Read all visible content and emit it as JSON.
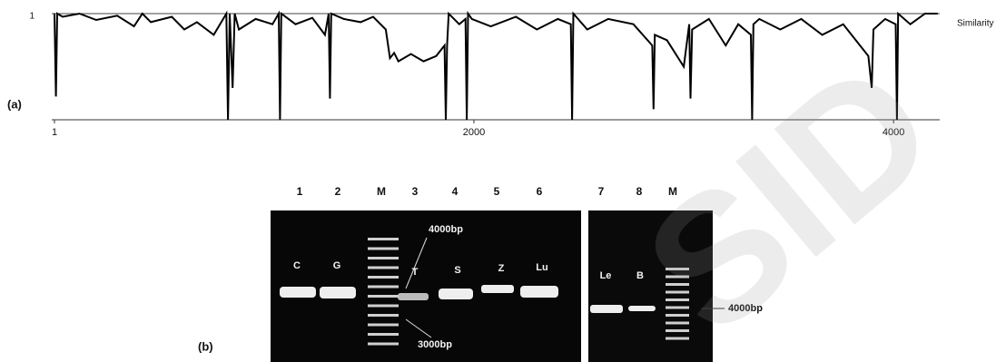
{
  "chart_data": {
    "type": "line",
    "panel_label": "(a)",
    "y_label": "Similarity",
    "x": [
      1,
      8,
      14,
      40,
      120,
      200,
      300,
      380,
      420,
      460,
      560,
      620,
      680,
      760,
      820,
      828,
      836,
      850,
      860,
      880,
      960,
      1040,
      1070,
      1076,
      1082,
      1150,
      1230,
      1290,
      1308,
      1314,
      1320,
      1380,
      1460,
      1520,
      1580,
      1600,
      1620,
      1640,
      1700,
      1760,
      1820,
      1860,
      1866,
      1872,
      1880,
      1930,
      1960,
      1966,
      1972,
      1990,
      2080,
      2200,
      2300,
      2400,
      2462,
      2468,
      2474,
      2540,
      2640,
      2760,
      2850,
      2856,
      2862,
      2920,
      3000,
      3026,
      3032,
      3040,
      3120,
      3200,
      3260,
      3320,
      3326,
      3332,
      3360,
      3460,
      3560,
      3660,
      3760,
      3880,
      3896,
      3904,
      3960,
      4010,
      4016,
      4022,
      4080,
      4150,
      4210
    ],
    "values": [
      1,
      0.22,
      1,
      0.97,
      1,
      0.94,
      0.98,
      0.88,
      1,
      0.92,
      0.97,
      0.85,
      0.92,
      0.8,
      1,
      0,
      1,
      0.3,
      1,
      0.85,
      0.95,
      0.9,
      1,
      0,
      1,
      0.9,
      0.96,
      0.8,
      1,
      0.2,
      1,
      0.95,
      0.92,
      0.97,
      0.85,
      0.58,
      0.63,
      0.55,
      0.62,
      0.55,
      0.6,
      0.7,
      0,
      0.7,
      1,
      0.9,
      0.95,
      0,
      1,
      0.95,
      0.88,
      0.97,
      0.85,
      0.95,
      0.9,
      0,
      1,
      0.85,
      0.95,
      0.9,
      0.7,
      0.1,
      0.8,
      0.75,
      0.5,
      0.9,
      0.2,
      0.85,
      0.95,
      0.7,
      0.9,
      0.8,
      0,
      0.9,
      0.95,
      0.85,
      0.95,
      0.8,
      0.9,
      0.6,
      0.3,
      0.85,
      0.95,
      0.9,
      0,
      1,
      0.9,
      1,
      1
    ],
    "color": "#000000",
    "xlim": [
      1,
      4220
    ],
    "ylim": [
      0,
      1
    ],
    "xticks": [
      1,
      2000,
      4000
    ],
    "yticks": [
      1
    ]
  },
  "gel": {
    "panel_label": "(b)",
    "lane_numbers": [
      "1",
      "2",
      "M",
      "3",
      "4",
      "5",
      "6",
      "7",
      "8",
      "M"
    ],
    "band_labels": [
      "C",
      "G",
      "T",
      "S",
      "Z",
      "Lu",
      "Le",
      "B"
    ],
    "annotations": [
      "4000bp",
      "3000bp",
      "4000bp"
    ]
  },
  "watermark": "SID"
}
